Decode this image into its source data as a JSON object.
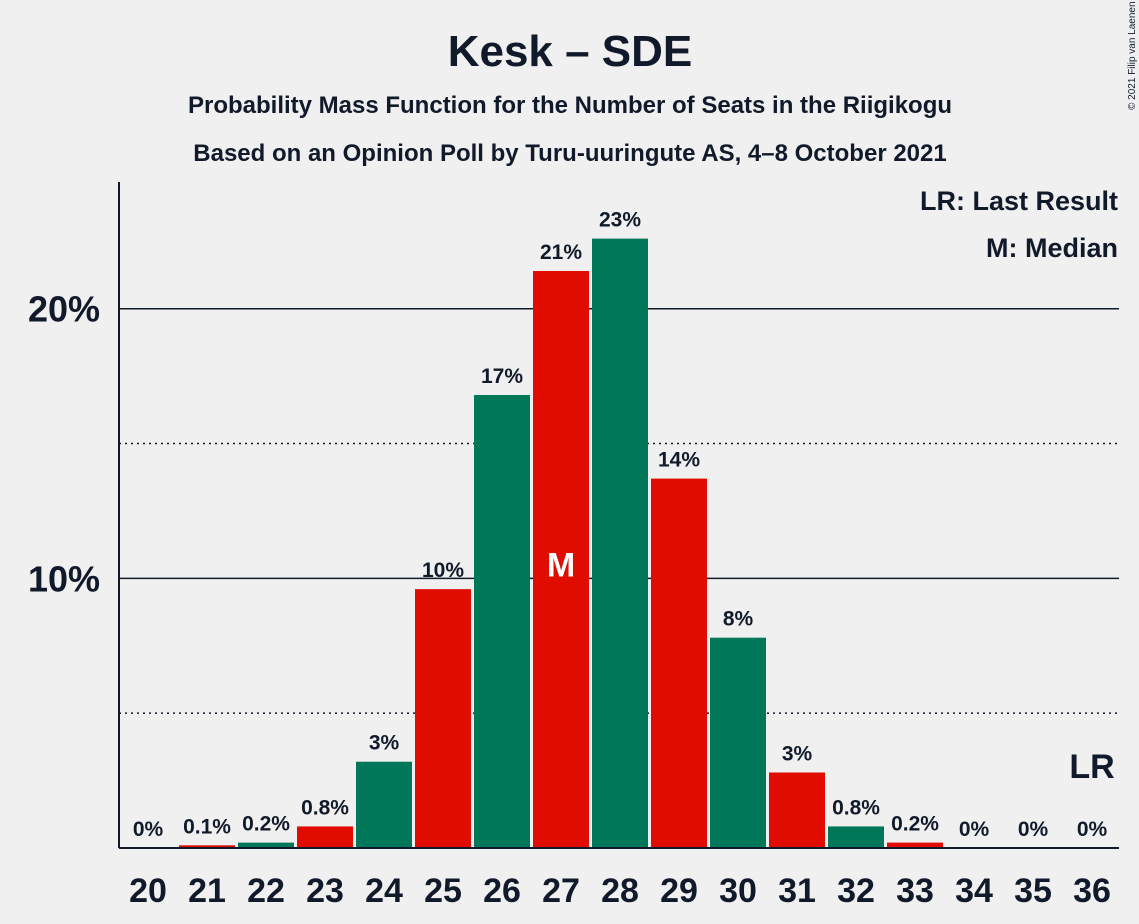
{
  "chart_data": {
    "type": "bar",
    "title": "Kesk – SDE",
    "subtitles": [
      "Probability Mass Function for the Number of Seats in the Riigikogu",
      "Based on an Opinion Poll by Turu-uuringute AS, 4–8 October 2021"
    ],
    "categories": [
      "20",
      "21",
      "22",
      "23",
      "24",
      "25",
      "26",
      "27",
      "28",
      "29",
      "30",
      "31",
      "32",
      "33",
      "34",
      "35",
      "36"
    ],
    "values": [
      0,
      0.1,
      0.2,
      0.8,
      3.2,
      9.6,
      16.8,
      21.4,
      22.6,
      13.7,
      7.8,
      2.8,
      0.8,
      0.2,
      0,
      0,
      0
    ],
    "data_labels": [
      "0%",
      "0.1%",
      "0.2%",
      "0.8%",
      "3%",
      "10%",
      "17%",
      "21%",
      "23%",
      "14%",
      "8%",
      "3%",
      "0.8%",
      "0.2%",
      "0%",
      "0%",
      "0%"
    ],
    "bar_colors": [
      "#e00c00",
      "#e00c00",
      "#01775a",
      "#e00c00",
      "#01775a",
      "#e00c00",
      "#01775a",
      "#e00c00",
      "#01775a",
      "#e00c00",
      "#01775a",
      "#e00c00",
      "#01775a",
      "#e00c00",
      "#e00c00",
      "#e00c00",
      "#e00c00"
    ],
    "ylim": [
      0,
      24.7
    ],
    "y_ticks": [
      {
        "value": 10,
        "label": "10%"
      },
      {
        "value": 20,
        "label": "20%"
      }
    ],
    "minor_gridlines": [
      5,
      15
    ],
    "median": {
      "category": "27",
      "label": "M"
    },
    "last_result": {
      "category": "36",
      "label": "LR"
    },
    "legend": [
      "LR: Last Result",
      "M: Median"
    ],
    "legend_position": "top-right",
    "copyright": "© 2021 Filip van Laenen",
    "colors": {
      "party_a": "#01775a",
      "party_b": "#e00c00",
      "text": "#111a2a"
    }
  }
}
